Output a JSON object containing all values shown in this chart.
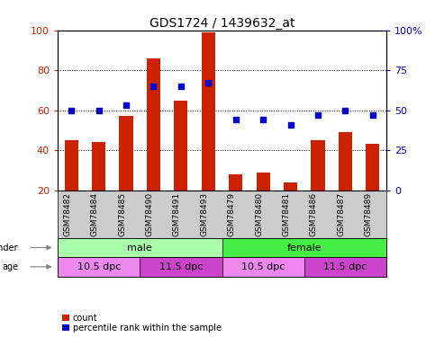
{
  "title": "GDS1724 / 1439632_at",
  "samples": [
    "GSM78482",
    "GSM78484",
    "GSM78485",
    "GSM78490",
    "GSM78491",
    "GSM78493",
    "GSM78479",
    "GSM78480",
    "GSM78481",
    "GSM78486",
    "GSM78487",
    "GSM78489"
  ],
  "counts": [
    45,
    44,
    57,
    86,
    65,
    99,
    28,
    29,
    24,
    45,
    49,
    43
  ],
  "percentile_ranks": [
    50,
    50,
    53,
    65,
    65,
    67,
    44,
    44,
    41,
    47,
    50,
    47
  ],
  "ylim_left": [
    20,
    100
  ],
  "ylim_right": [
    0,
    100
  ],
  "yticks_left": [
    20,
    40,
    60,
    80,
    100
  ],
  "yticks_right": [
    0,
    25,
    50,
    75,
    100
  ],
  "bar_color": "#CC2200",
  "dot_color": "#0000CC",
  "gender_bg_male": "#AAFFAA",
  "gender_bg_female": "#44EE44",
  "age_bg_light": "#EE88EE",
  "age_bg_dark": "#CC44CC",
  "legend_count_color": "#CC2200",
  "legend_pct_color": "#0000CC",
  "xticklabel_bg": "#CCCCCC"
}
